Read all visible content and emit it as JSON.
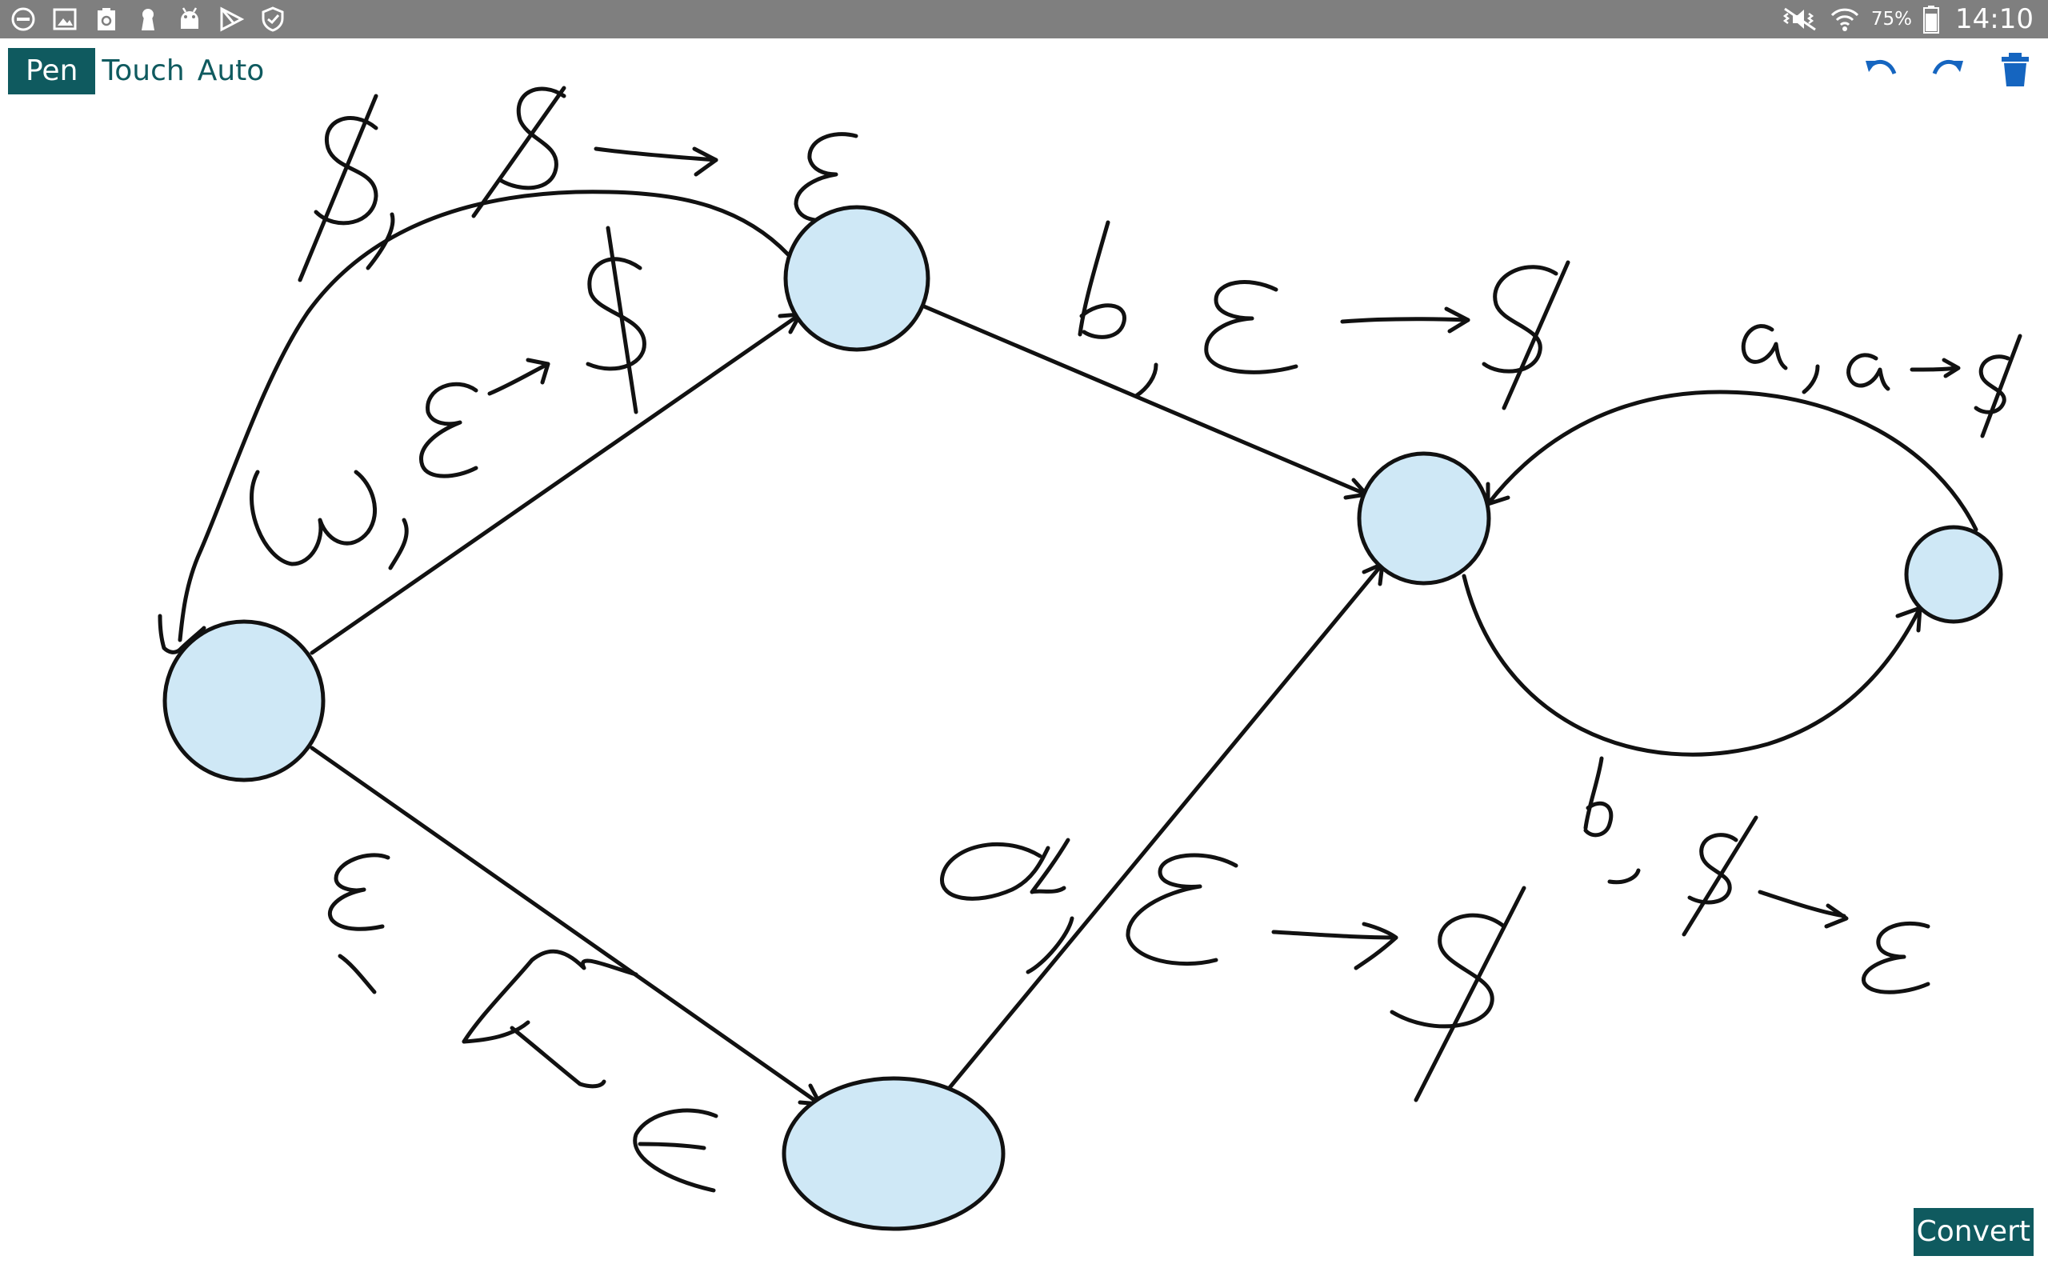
{
  "status_bar": {
    "left_icons": [
      "do-not-disturb-icon",
      "gallery-icon",
      "recycle-clipboard-icon",
      "keyhole-icon",
      "android-icon",
      "play-store-icon",
      "shield-icon"
    ],
    "battery_percent": "75%",
    "time": "14:10"
  },
  "toolbar": {
    "modes": [
      {
        "label": "Pen",
        "active": true
      },
      {
        "label": "Touch",
        "active": false
      },
      {
        "label": "Auto",
        "active": false
      }
    ],
    "undo_icon": "undo-icon",
    "redo_icon": "redo-icon",
    "delete_icon": "trash-icon"
  },
  "canvas": {
    "node_fill": "#cfe8f6",
    "stroke_color": "#111111"
  },
  "convert": {
    "label": "Convert"
  },
  "colors": {
    "statusbar": "#7f7f7f",
    "accent": "#0f5a5f",
    "icon_blue": "#1565c0"
  }
}
